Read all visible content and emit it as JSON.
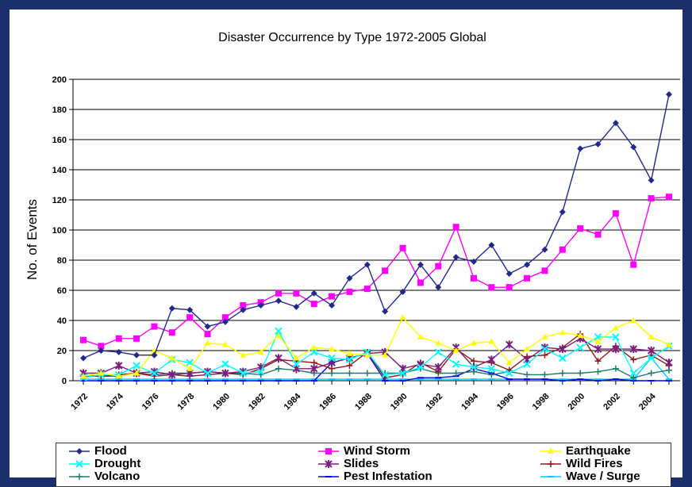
{
  "chart_data": {
    "type": "line",
    "title": "Disaster Occurrence by Type 1972-2005 Global",
    "xlabel": "",
    "ylabel": "No. of Events",
    "ylim": [
      0,
      200
    ],
    "yticks": [
      0,
      20,
      40,
      60,
      80,
      100,
      120,
      140,
      160,
      180,
      200
    ],
    "x": [
      1972,
      1973,
      1974,
      1975,
      1976,
      1977,
      1978,
      1979,
      1980,
      1981,
      1982,
      1983,
      1984,
      1985,
      1986,
      1987,
      1988,
      1989,
      1990,
      1991,
      1992,
      1993,
      1994,
      1995,
      1996,
      1997,
      1998,
      1999,
      2000,
      2001,
      2002,
      2003,
      2004,
      2005
    ],
    "xtick_labels": [
      "1972",
      "1974",
      "1976",
      "1978",
      "1980",
      "1982",
      "1984",
      "1986",
      "1988",
      "1990",
      "1992",
      "1994",
      "1996",
      "1998",
      "2000",
      "2002",
      "2004"
    ],
    "grid": "horizontal",
    "legend_position": "bottom",
    "series": [
      {
        "name": "Flood",
        "color": "#1f2a8a",
        "marker": "diamond",
        "values": [
          15,
          20,
          19,
          17,
          17,
          48,
          47,
          36,
          39,
          47,
          50,
          53,
          49,
          58,
          50,
          68,
          77,
          46,
          59,
          77,
          62,
          82,
          79,
          90,
          71,
          77,
          87,
          112,
          154,
          157,
          171,
          155,
          133,
          190
        ]
      },
      {
        "name": "Wind Storm",
        "color": "#ff00ff",
        "marker": "square",
        "values": [
          27,
          23,
          28,
          28,
          36,
          32,
          42,
          31,
          42,
          50,
          52,
          58,
          58,
          51,
          56,
          59,
          61,
          73,
          88,
          65,
          76,
          102,
          68,
          62,
          62,
          68,
          73,
          87,
          101,
          97,
          111,
          77,
          121,
          122
        ]
      },
      {
        "name": "Earthquake",
        "color": "#ffff00",
        "marker": "triangle",
        "values": [
          3,
          5,
          3,
          5,
          20,
          15,
          8,
          25,
          24,
          17,
          19,
          30,
          15,
          22,
          21,
          18,
          17,
          17,
          42,
          29,
          25,
          20,
          25,
          26,
          12,
          21,
          29,
          32,
          30,
          26,
          35,
          40,
          29,
          24
        ]
      },
      {
        "name": "Drought",
        "color": "#00ffff",
        "marker": "x",
        "values": [
          2,
          4,
          4,
          10,
          5,
          14,
          12,
          5,
          11,
          5,
          6,
          33,
          11,
          19,
          15,
          14,
          19,
          4,
          5,
          9,
          19,
          11,
          9,
          8,
          5,
          11,
          21,
          15,
          22,
          29,
          29,
          5,
          15,
          23
        ]
      },
      {
        "name": "Slides",
        "color": "#7b1e7b",
        "marker": "star",
        "values": [
          5,
          5,
          10,
          5,
          6,
          4,
          5,
          6,
          5,
          6,
          9,
          15,
          8,
          8,
          12,
          15,
          18,
          19,
          8,
          11,
          9,
          22,
          9,
          14,
          24,
          14,
          22,
          21,
          28,
          21,
          21,
          21,
          20,
          12
        ]
      },
      {
        "name": "Wild Fires",
        "color": "#8b1a1a",
        "marker": "plus",
        "values": [
          3,
          3,
          4,
          5,
          3,
          4,
          3,
          4,
          5,
          4,
          8,
          14,
          13,
          12,
          8,
          10,
          19,
          2,
          4,
          12,
          6,
          21,
          13,
          12,
          7,
          16,
          17,
          22,
          31,
          13,
          23,
          14,
          17,
          10
        ]
      },
      {
        "name": "Volcano",
        "color": "#1f7a6b",
        "marker": "plus",
        "values": [
          4,
          3,
          3,
          5,
          4,
          5,
          5,
          6,
          5,
          5,
          4,
          8,
          7,
          5,
          5,
          5,
          5,
          5,
          5,
          8,
          5,
          5,
          6,
          4,
          6,
          4,
          4,
          5,
          5,
          6,
          8,
          2,
          5,
          7
        ]
      },
      {
        "name": "Pest Infestation",
        "color": "#0000ff",
        "marker": "dash",
        "values": [
          0,
          0,
          0,
          0,
          0,
          0,
          0,
          0,
          0,
          0,
          0,
          0,
          0,
          0,
          12,
          15,
          18,
          0,
          0,
          2,
          2,
          3,
          8,
          5,
          1,
          1,
          1,
          0,
          1,
          0,
          1,
          0,
          0,
          0
        ]
      },
      {
        "name": "Wave / Surge",
        "color": "#00ccff",
        "marker": "dash",
        "values": [
          1,
          1,
          1,
          1,
          1,
          1,
          1,
          1,
          1,
          1,
          1,
          1,
          1,
          1,
          1,
          1,
          1,
          1,
          1,
          1,
          1,
          1,
          1,
          1,
          1,
          1,
          1,
          1,
          1,
          1,
          1,
          1,
          15,
          1
        ]
      }
    ]
  }
}
